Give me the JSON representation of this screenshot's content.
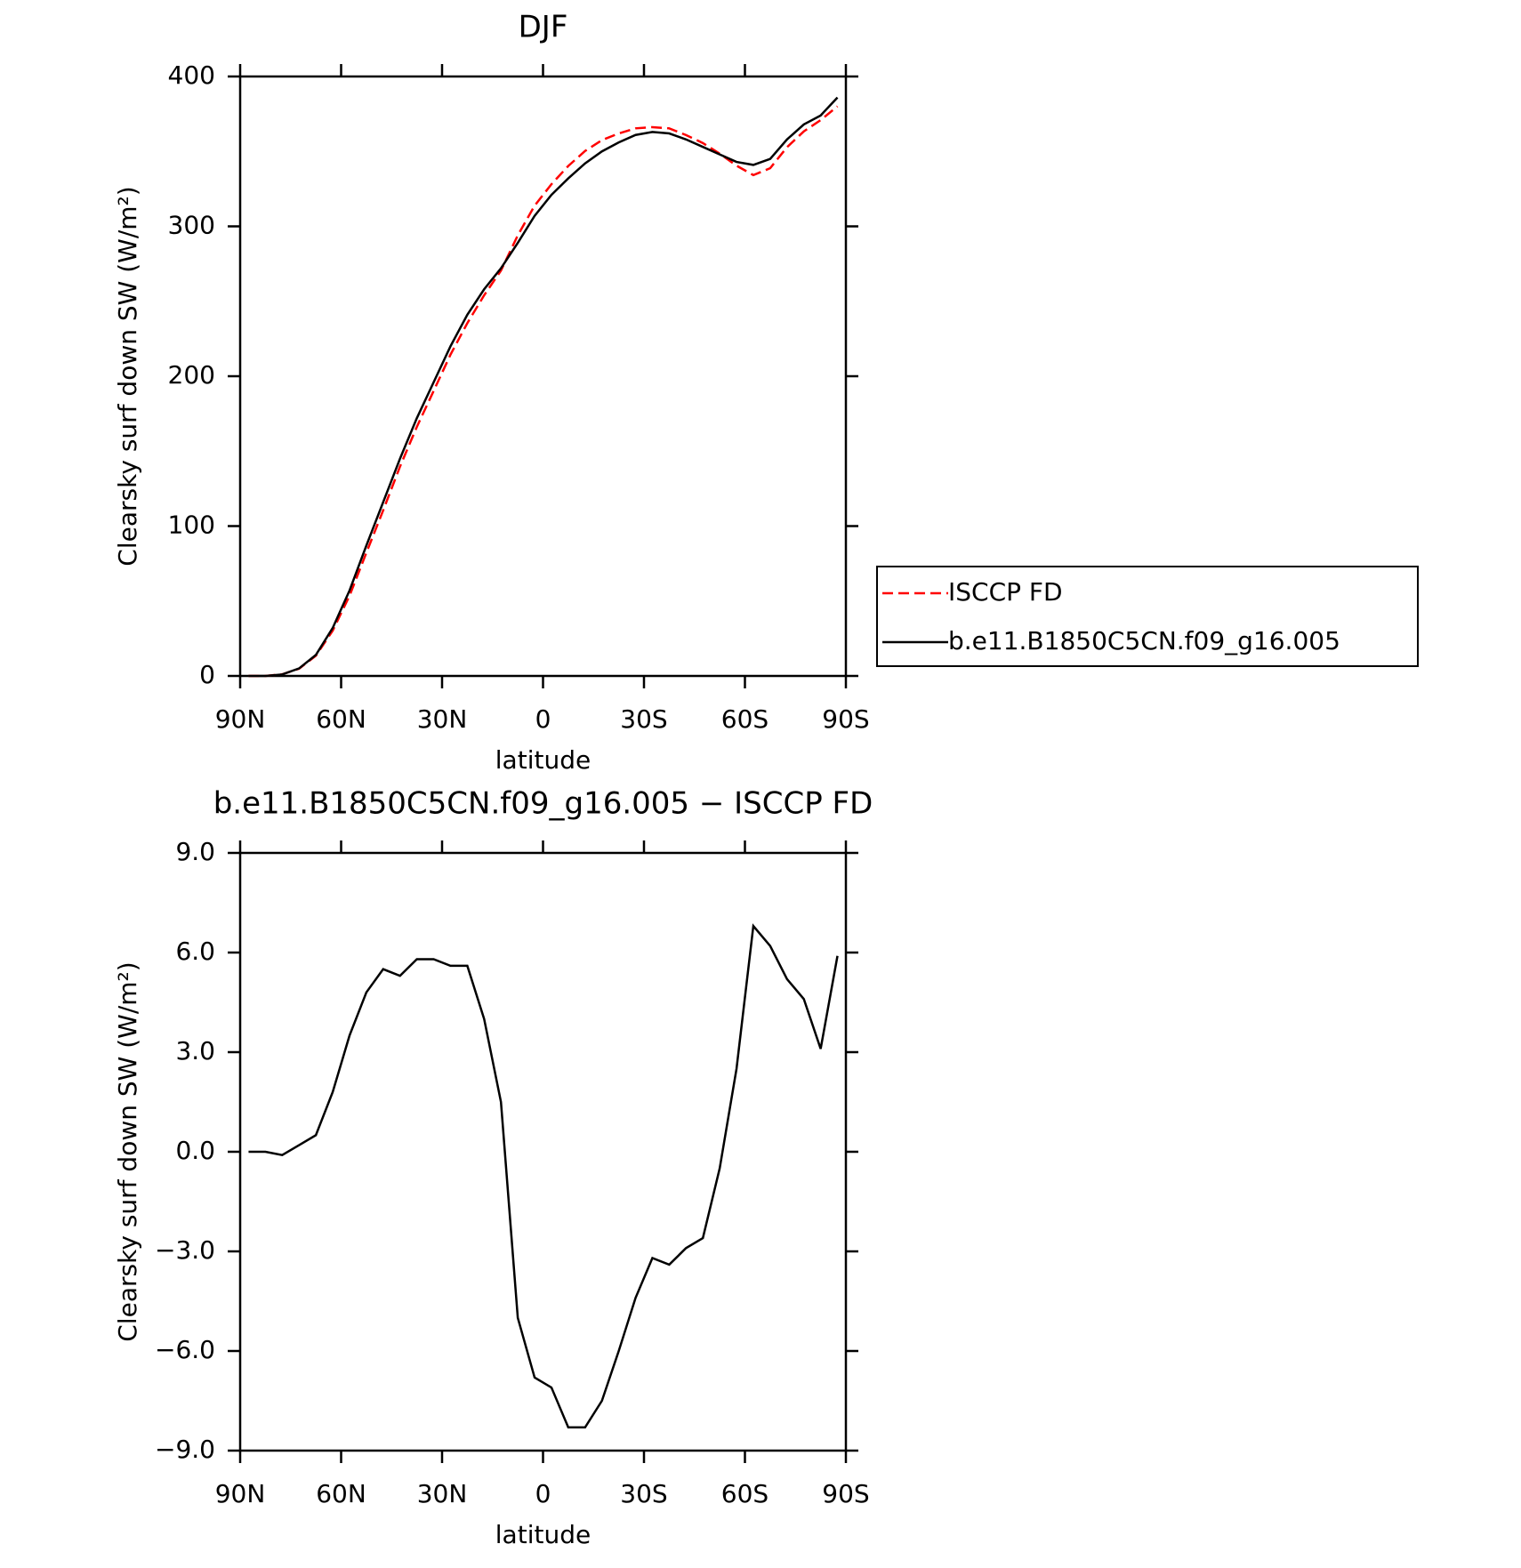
{
  "chart_data": [
    {
      "type": "line",
      "title": "DJF",
      "xlabel": "latitude",
      "ylabel": "Clearsky surf down SW (W/m²)",
      "x": [
        87.5,
        82.5,
        77.5,
        72.5,
        67.5,
        62.5,
        57.5,
        52.5,
        47.5,
        42.5,
        37.5,
        32.5,
        27.5,
        22.5,
        17.5,
        12.5,
        7.5,
        2.5,
        -2.5,
        -7.5,
        -12.5,
        -17.5,
        -22.5,
        -27.5,
        -32.5,
        -37.5,
        -42.5,
        -47.5,
        -52.5,
        -57.5,
        -62.5,
        -67.5,
        -72.5,
        -77.5,
        -82.5,
        -87.5
      ],
      "series": [
        {
          "name": "ISCCP FD",
          "color": "#ff0000",
          "dash": true,
          "values": [
            0,
            0,
            1.1,
            4.8,
            13.5,
            30.2,
            53.5,
            82.2,
            110.5,
            139.7,
            166.2,
            190.2,
            214.4,
            235.4,
            254,
            270.5,
            294,
            313.8,
            328.1,
            340.3,
            350.3,
            357.5,
            362,
            365.4,
            366.2,
            365.4,
            360.9,
            355.6,
            348.5,
            340.5,
            334.2,
            338.8,
            352.8,
            363.4,
            370.9,
            380.1
          ]
        },
        {
          "name": "b.e11.B1850C5CN.f09_g16.005",
          "color": "#000000",
          "dash": false,
          "values": [
            0,
            0,
            1,
            5,
            14,
            32,
            57,
            87,
            116,
            145,
            172,
            196,
            220,
            241,
            258,
            272,
            289,
            307,
            321,
            332,
            342,
            350,
            356,
            361,
            363,
            362,
            358,
            353,
            348,
            343,
            341,
            345,
            358,
            368,
            374,
            386
          ]
        }
      ],
      "xlim": [
        90,
        -90
      ],
      "xticks": [
        {
          "value": 90,
          "label": "90N"
        },
        {
          "value": 60,
          "label": "60N"
        },
        {
          "value": 30,
          "label": "30N"
        },
        0,
        {
          "value": -30,
          "label": "30S"
        },
        {
          "value": -60,
          "label": "60S"
        },
        {
          "value": -90,
          "label": "90S"
        }
      ],
      "ylim": [
        0,
        400
      ],
      "yticks": [
        0,
        100,
        200,
        300,
        400
      ],
      "legend": "right"
    },
    {
      "type": "line",
      "title": "b.e11.B1850C5CN.f09_g16.005 − ISCCP FD",
      "xlabel": "latitude",
      "ylabel": "Clearsky surf down SW (W/m²)",
      "x": [
        87.5,
        82.5,
        77.5,
        72.5,
        67.5,
        62.5,
        57.5,
        52.5,
        47.5,
        42.5,
        37.5,
        32.5,
        27.5,
        22.5,
        17.5,
        12.5,
        7.5,
        2.5,
        -2.5,
        -7.5,
        -12.5,
        -17.5,
        -22.5,
        -27.5,
        -32.5,
        -37.5,
        -42.5,
        -47.5,
        -52.5,
        -57.5,
        -62.5,
        -67.5,
        -72.5,
        -77.5,
        -82.5,
        -87.5
      ],
      "series": [
        {
          "color": "#000000",
          "dash": false,
          "values": [
            0,
            0,
            -0.1,
            0.2,
            0.5,
            1.8,
            3.5,
            4.8,
            5.5,
            5.3,
            5.8,
            5.8,
            5.6,
            5.6,
            4.0,
            1.5,
            -5,
            -6.8,
            -7.1,
            -8.3,
            -8.3,
            -7.5,
            -6.0,
            -4.4,
            -3.2,
            -3.4,
            -2.9,
            -2.6,
            -0.5,
            2.5,
            6.8,
            6.2,
            5.2,
            4.6,
            3.1,
            5.9
          ]
        }
      ],
      "xlim": [
        90,
        -90
      ],
      "xticks": [
        {
          "value": 90,
          "label": "90N"
        },
        {
          "value": 60,
          "label": "60N"
        },
        {
          "value": 30,
          "label": "30N"
        },
        0,
        {
          "value": -30,
          "label": "30S"
        },
        {
          "value": -60,
          "label": "60S"
        },
        {
          "value": -90,
          "label": "90S"
        }
      ],
      "ylim": [
        -9,
        9
      ],
      "yticks": [
        {
          "value": -9,
          "label": "−9.0"
        },
        {
          "value": -6,
          "label": "−6.0"
        },
        {
          "value": -3,
          "label": "−3.0"
        },
        {
          "value": 0,
          "label": "0.0"
        },
        {
          "value": 3,
          "label": "3.0"
        },
        {
          "value": 6,
          "label": "6.0"
        },
        {
          "value": 9,
          "label": "9.0"
        }
      ]
    }
  ]
}
